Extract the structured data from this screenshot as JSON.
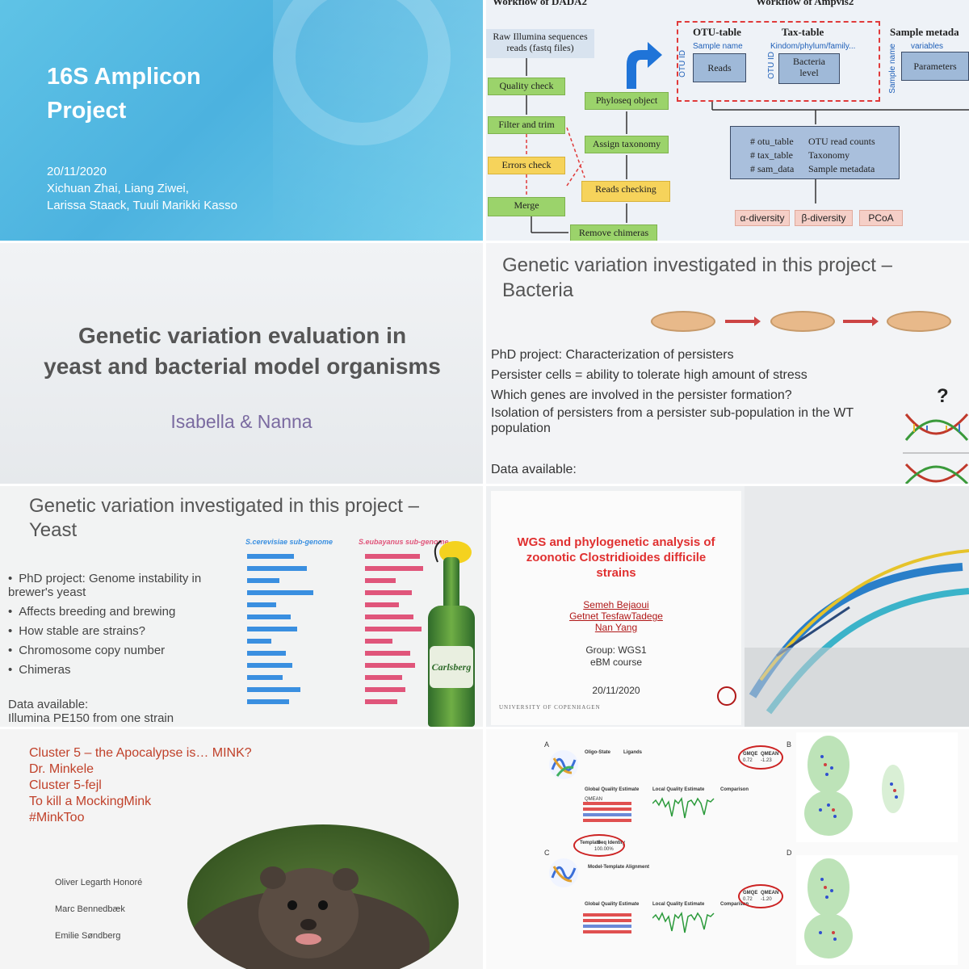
{
  "slide1": {
    "title_line1": "16S Amplicon",
    "title_line2": "Project",
    "date": "20/11/2020",
    "authors_line1": "Xichuan Zhai, Liang Ziwei,",
    "authors_line2": "Larissa Staack, Tuuli Marikki Kasso"
  },
  "slide2": {
    "dada2_header": "Workflow of DADA2",
    "ampvis2_header": "Workflow of Ampvis2",
    "raw_reads": "Raw Illumina sequences reads (fastq files)",
    "quality": "Quality check",
    "filter": "Filter and trim",
    "errors": "Errors check",
    "merge": "Merge",
    "remove_chimeras": "Remove chimeras",
    "reads_checking": "Reads checking",
    "assign_taxonomy": "Assign taxonomy",
    "phyloseq": "Phyloseq object",
    "otu_table_title": "OTU-table",
    "otu_sub": "Sample name",
    "otu_vert": "OTU ID",
    "otu_box": "Reads",
    "tax_table_title": "Tax-table",
    "tax_sub": "Kindom/phylum/family...",
    "tax_vert": "OTU ID",
    "tax_box": "Bacteria level",
    "sample_title": "Sample metada",
    "sample_sub": "variables",
    "sample_vert": "Sample name",
    "sample_box": "Parameters",
    "summary_left1": "# otu_table",
    "summary_left2": "# tax_table",
    "summary_left3": "# sam_data",
    "summary_right1": "OTU read counts",
    "summary_right2": "Taxonomy",
    "summary_right3": "Sample metadata",
    "alpha": "α-diversity",
    "beta": "β-diversity",
    "pcoa": "PCoA"
  },
  "slide3": {
    "title_line1": "Genetic variation evaluation in",
    "title_line2": "yeast and bacterial model organisms",
    "authors": "Isabella & Nanna"
  },
  "slide4": {
    "title_line1": "Genetic variation investigated in this project –",
    "title_line2": "Bacteria",
    "bullets": [
      "PhD project: Characterization of persisters",
      "Persister cells = ability to tolerate high amount of stress",
      "Which genes are involved in the persister formation?",
      "Isolation of persisters from a persister sub-population in the WT population"
    ],
    "data_available": "Data available:",
    "question_mark": "?"
  },
  "slide5": {
    "title_line1": "Genetic variation investigated in this project –",
    "title_line2": "Yeast",
    "genome1_title": "S.cerevisiae sub-genome",
    "genome2_title": "S.eubayanus sub-genome",
    "bullets": [
      "PhD project: Genome instability in brewer's yeast",
      "Affects breeding and brewing",
      "How stable are strains?",
      "Chromosome copy number",
      "Chimeras"
    ],
    "data_available_line1": "Data available:",
    "data_available_line2": "Illumina PE150 from one strain",
    "bottle_label": "Carlsberg",
    "colors": {
      "blue_bar": "#3a8fe0",
      "pink_bar": "#e0557a"
    }
  },
  "slide6": {
    "title_line1": "WGS and phylogenetic analysis of",
    "title_line2": "zoonotic Clostridioides difficile",
    "title_line3": "strains",
    "author1": "Semeh Bejaoui",
    "author2": "Getnet TesfawTadege",
    "author3": "Nan Yang",
    "group": "Group: WGS1",
    "course": "eBM course",
    "date": "20/11/2020",
    "university": "UNIVERSITY OF COPENHAGEN"
  },
  "slide7": {
    "line1": "Cluster 5 – the Apocalypse is… MINK?",
    "line2": "Dr. Minkele",
    "line3": "Cluster 5-fejl",
    "line4": "To kill a MockingMink",
    "line5": "#MinkToo",
    "name1": "Oliver Legarth Honoré",
    "name2": "Marc Bennedbæk",
    "name3": "Emilie Søndberg"
  },
  "slide8": {
    "panel_a": "A",
    "panel_b": "B",
    "panel_c": "C",
    "panel_d": "D",
    "oligo_state": "Oligo-State",
    "ligands": "Ligands",
    "gqe": "Global Quality Estimate",
    "lqe": "Local Quality Estimate",
    "comparison": "Comparison",
    "qmean": "QMEAN",
    "qmean_a": "-1.23",
    "qmean_c": "-1.20",
    "gmqe": "GMQE",
    "gmqe_val": "0.72",
    "template": "Template",
    "seq_identity": "Seq Identity",
    "identity_val": "100.00%",
    "model_template_alignment": "Model-Template Alignment"
  }
}
